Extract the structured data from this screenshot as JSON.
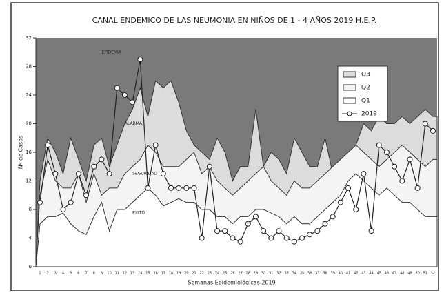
{
  "chart_data": {
    "type": "area",
    "title": "CANAL ENDEMICO DE LAS NEUMONIA EN NIÑOS DE 1 - 4 AÑOS 2019 H.E.P.",
    "x_label": "Semanas Epidemiológicas 2019",
    "y_label": "Nº de Casos",
    "annotations": [
      "EPIDEMIA",
      "ALARMA",
      "SEGURIDAD",
      "EXITO"
    ],
    "categories": [
      1,
      2,
      3,
      4,
      5,
      6,
      7,
      8,
      9,
      10,
      11,
      12,
      13,
      14,
      15,
      16,
      17,
      18,
      19,
      20,
      21,
      22,
      23,
      24,
      25,
      26,
      27,
      28,
      29,
      30,
      31,
      32,
      33,
      34,
      35,
      36,
      37,
      38,
      39,
      40,
      41,
      42,
      43,
      44,
      45,
      46,
      47,
      48,
      49,
      50,
      51,
      52
    ],
    "ylim": [
      0,
      32
    ],
    "yticks": [
      0,
      4,
      8,
      12,
      16,
      20,
      24,
      28,
      32
    ],
    "background_color": "#7a7a7a",
    "legend": "upper right",
    "series": [
      {
        "name": "Q3",
        "color": "#dcdcdc",
        "values": [
          12,
          18,
          16,
          13,
          18,
          15,
          12,
          17,
          18,
          14,
          17,
          20,
          22,
          25,
          21,
          26,
          25,
          26,
          23,
          19,
          17,
          16,
          15,
          18,
          16,
          12,
          14,
          14,
          22,
          14,
          16,
          15,
          13,
          18,
          16,
          14,
          14,
          18,
          13,
          14,
          14,
          17,
          20,
          19,
          21,
          20,
          20,
          21,
          20,
          21,
          22,
          21
        ]
      },
      {
        "name": "Q2",
        "color": "#f4f4f4",
        "values": [
          10,
          15,
          12,
          11,
          11,
          13,
          9,
          13,
          10,
          11,
          11,
          13,
          14,
          15,
          17,
          16,
          14,
          14,
          14,
          15,
          16,
          13,
          14,
          12,
          11,
          10,
          11,
          12,
          13,
          14,
          12,
          11,
          10,
          12,
          11,
          11,
          12,
          13,
          14,
          15,
          16,
          17,
          16,
          15,
          14,
          15,
          16,
          17,
          16,
          15,
          14,
          15
        ]
      },
      {
        "name": "Q1",
        "color": "#ffffff",
        "values": [
          6,
          7,
          7,
          7.5,
          6,
          5,
          4.5,
          7,
          9,
          5,
          8,
          8,
          9,
          10,
          11,
          10,
          8.5,
          9,
          9.5,
          9,
          9,
          8,
          8,
          7,
          7,
          6,
          7,
          7,
          8,
          8,
          7.5,
          7,
          6,
          7,
          6,
          6,
          7,
          8,
          9,
          10,
          12,
          13,
          12,
          11,
          10,
          11,
          10,
          9,
          9,
          8,
          7,
          7
        ]
      },
      {
        "name": "2019",
        "color": "#222222",
        "type": "line",
        "values": [
          9,
          17,
          13,
          8,
          9,
          13,
          10,
          14,
          15,
          13,
          25,
          24,
          23,
          29,
          11,
          17,
          13,
          11,
          11,
          11,
          11,
          4,
          14,
          5,
          5,
          4,
          3.5,
          6,
          7,
          5,
          4,
          5,
          4,
          3.5,
          4,
          4.5,
          5,
          6,
          7,
          9,
          11,
          8,
          13,
          5,
          17,
          16,
          14,
          12,
          15,
          11,
          20,
          19
        ]
      }
    ]
  }
}
